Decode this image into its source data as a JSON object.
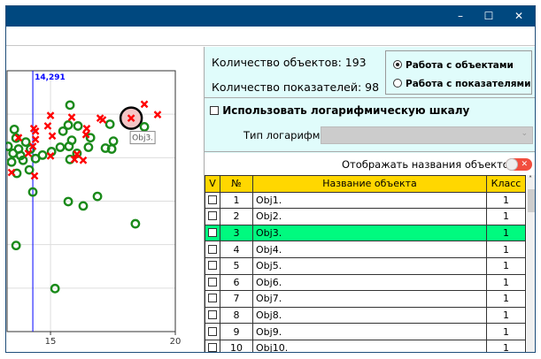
{
  "window": {
    "minimize": "–",
    "maximize": "☐",
    "close": "✕",
    "title_color": "#00487f"
  },
  "info": {
    "objects_count": "Количество объектов: 193",
    "indicators_count": "Количество показателей: 98",
    "mode_options": [
      {
        "label": "Работа с объектами",
        "selected": true
      },
      {
        "label": "Работа с показателями",
        "selected": false
      }
    ]
  },
  "log": {
    "use_log_label": "Использовать логарифмическую шкалу",
    "use_log_checked": false,
    "log_type_label": "Тип логарифма:",
    "log_type_value": ""
  },
  "show_names": {
    "label": "Отображать названия объектов",
    "enabled": false
  },
  "table": {
    "headers": [
      "V",
      "№",
      "Название объекта",
      "Класс"
    ],
    "rows": [
      {
        "num": "1",
        "name": "Obj1.",
        "class": "1",
        "selected": false
      },
      {
        "num": "2",
        "name": "Obj2.",
        "class": "1",
        "selected": false
      },
      {
        "num": "3",
        "name": "Obj3.",
        "class": "1",
        "selected": true
      },
      {
        "num": "4",
        "name": "Obj4.",
        "class": "1",
        "selected": false
      },
      {
        "num": "5",
        "name": "Obj5.",
        "class": "1",
        "selected": false
      },
      {
        "num": "6",
        "name": "Obj6.",
        "class": "1",
        "selected": false
      },
      {
        "num": "7",
        "name": "Obj7.",
        "class": "1",
        "selected": false
      },
      {
        "num": "8",
        "name": "Obj8.",
        "class": "1",
        "selected": false
      },
      {
        "num": "9",
        "name": "Obj9.",
        "class": "1",
        "selected": false
      },
      {
        "num": "10",
        "name": "Obj10.",
        "class": "1",
        "selected": false
      }
    ],
    "selected_color": "#00fa7f",
    "header_color": "#ffd700"
  },
  "chart_data": {
    "type": "scatter",
    "xlim": [
      13.26,
      20
    ],
    "ylim": [
      0,
      6
    ],
    "grid": true,
    "xticks": [
      "15",
      "20"
    ],
    "xtick_values": [
      15,
      20
    ],
    "vline": {
      "x": 14.291,
      "label": "14,291",
      "color": "#0000ff"
    },
    "tooltip": "Obj3.",
    "highlight": {
      "x": 18.23,
      "y": 4.91
    },
    "series": [
      {
        "marker": "circle",
        "color": "#1a8a1a",
        "points": [
          [
            15.78,
            5.21
          ],
          [
            15.71,
            4.75
          ],
          [
            16.1,
            4.73
          ],
          [
            17.38,
            4.77
          ],
          [
            18.76,
            4.71
          ],
          [
            17.52,
            4.38
          ],
          [
            17.2,
            4.22
          ],
          [
            17.45,
            4.2
          ],
          [
            16.52,
            4.24
          ],
          [
            16.6,
            4.46
          ],
          [
            15.5,
            4.61
          ],
          [
            15.85,
            4.4
          ],
          [
            15.74,
            4.26
          ],
          [
            15.39,
            4.24
          ],
          [
            15.04,
            4.14
          ],
          [
            14.68,
            4.06
          ],
          [
            15.78,
            3.96
          ],
          [
            16.06,
            4.1
          ],
          [
            14.4,
            3.98
          ],
          [
            14.15,
            3.72
          ],
          [
            13.65,
            3.64
          ],
          [
            13.44,
            3.9
          ],
          [
            13.55,
            4.65
          ],
          [
            13.3,
            4.26
          ],
          [
            13.72,
            4.2
          ],
          [
            13.9,
            3.94
          ],
          [
            14.01,
            4.36
          ],
          [
            13.62,
            4.45
          ],
          [
            13.8,
            4.05
          ],
          [
            14.2,
            4.2
          ],
          [
            13.5,
            4.1
          ],
          [
            14.29,
            3.21
          ],
          [
            15.71,
            2.99
          ],
          [
            16.31,
            2.89
          ],
          [
            16.88,
            3.11
          ],
          [
            18.4,
            2.48
          ],
          [
            13.62,
            1.98
          ],
          [
            15.18,
            0.99
          ]
        ]
      },
      {
        "marker": "cross",
        "color": "#ff0000",
        "points": [
          [
            18.76,
            5.23
          ],
          [
            19.29,
            4.99
          ],
          [
            18.23,
            4.91
          ],
          [
            15.0,
            4.97
          ],
          [
            15.85,
            4.93
          ],
          [
            16.99,
            4.91
          ],
          [
            17.09,
            4.87
          ],
          [
            14.89,
            4.73
          ],
          [
            14.33,
            4.67
          ],
          [
            14.4,
            4.61
          ],
          [
            15.07,
            4.5
          ],
          [
            16.45,
            4.67
          ],
          [
            16.42,
            4.53
          ],
          [
            13.72,
            4.46
          ],
          [
            14.4,
            4.42
          ],
          [
            14.29,
            4.26
          ],
          [
            14.11,
            4.1
          ],
          [
            15.0,
            4.04
          ],
          [
            16.06,
            4.08
          ],
          [
            15.96,
            3.96
          ],
          [
            16.31,
            3.94
          ],
          [
            13.44,
            3.66
          ],
          [
            14.36,
            3.58
          ]
        ]
      }
    ]
  }
}
